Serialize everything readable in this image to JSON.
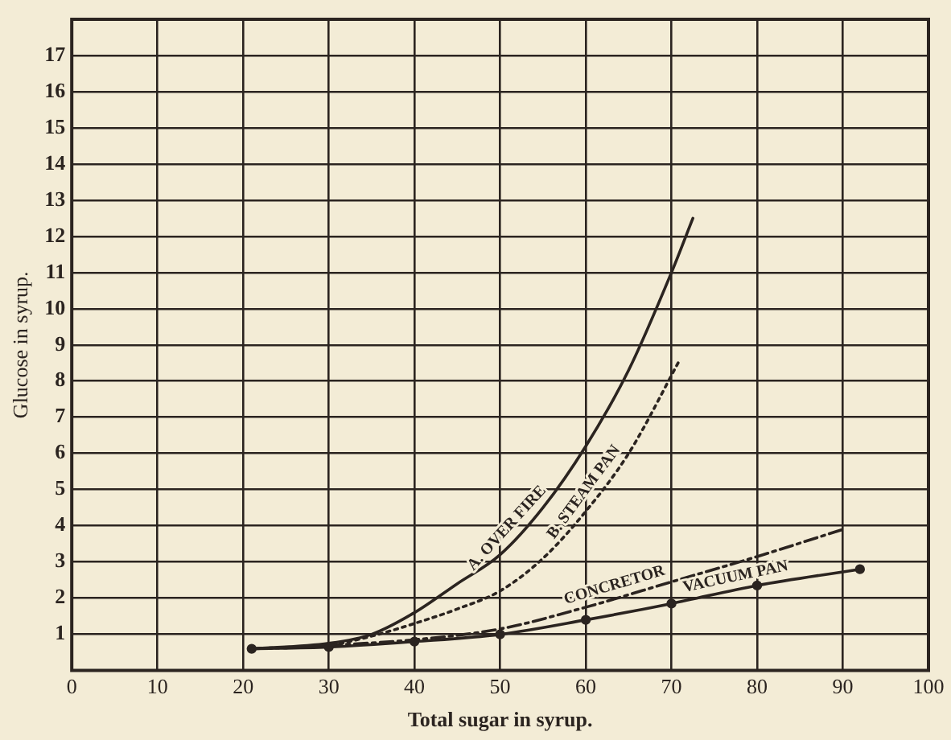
{
  "chart_data": {
    "type": "line",
    "xlabel": "Total sugar in syrup.",
    "ylabel": "Glucose in syrup.",
    "xlim": [
      0,
      100
    ],
    "xticks": [
      0,
      10,
      20,
      30,
      40,
      50,
      60,
      70,
      80,
      90,
      100
    ],
    "ylim": [
      0,
      18
    ],
    "yticks": [
      {
        "value": 0,
        "label": null
      },
      1,
      2,
      3,
      4,
      5,
      6,
      7,
      8,
      9,
      10,
      11,
      12,
      13,
      14,
      15,
      16,
      17,
      {
        "value": 18,
        "label": null
      }
    ],
    "grid": true,
    "legend": false,
    "series": [
      {
        "name": "A. OVER FIRE",
        "color": "#2b2420",
        "line_style": "solid",
        "marker": "none",
        "x": [
          21,
          30,
          35,
          40,
          45,
          50,
          55,
          60,
          65,
          70,
          72.5
        ],
        "values": [
          0.6,
          0.75,
          1.0,
          1.6,
          2.4,
          3.2,
          4.5,
          6.2,
          8.3,
          11.0,
          12.5
        ]
      },
      {
        "name": "B. STEAM PAN",
        "color": "#2b2420",
        "line_style": "dotted",
        "marker": "none",
        "x": [
          21,
          30,
          35,
          40,
          45,
          50,
          55,
          60,
          65,
          71
        ],
        "values": [
          0.6,
          0.7,
          0.95,
          1.3,
          1.7,
          2.2,
          3.1,
          4.4,
          6.0,
          8.6
        ]
      },
      {
        "name": "CONCRETOR",
        "color": "#2b2420",
        "line_style": "dashed",
        "marker": "none",
        "x": [
          21,
          30,
          40,
          50,
          60,
          70,
          80,
          90
        ],
        "values": [
          0.6,
          0.7,
          0.85,
          1.15,
          1.75,
          2.45,
          3.15,
          3.9
        ]
      },
      {
        "name": "VACUUM PAN",
        "color": "#2b2420",
        "line_style": "solid",
        "marker": "circle",
        "x": [
          21,
          30,
          40,
          50,
          60,
          70,
          80,
          92
        ],
        "values": [
          0.6,
          0.65,
          0.8,
          1.0,
          1.4,
          1.85,
          2.35,
          2.8
        ]
      }
    ]
  }
}
